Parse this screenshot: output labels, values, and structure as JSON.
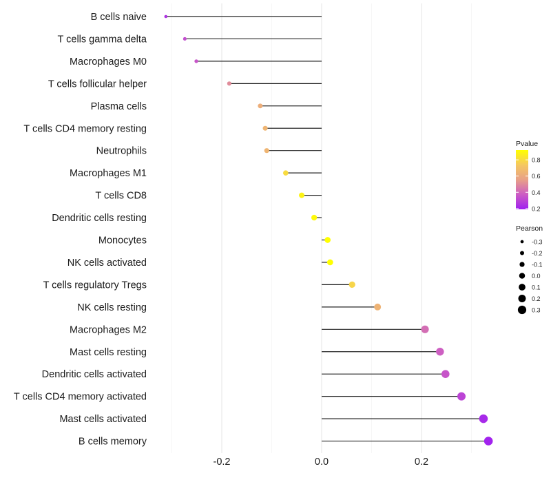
{
  "chart_data": {
    "type": "lollipop",
    "xlabel": "",
    "ylabel": "",
    "xlim": [
      -0.33,
      0.35
    ],
    "xticks": [
      -0.2,
      0.0,
      0.2
    ],
    "xtick_labels": [
      "-0.2",
      "0.0",
      "0.2"
    ],
    "grid": true,
    "categories": [
      "B cells naive",
      "T cells gamma delta",
      "Macrophages M0",
      "T cells follicular helper",
      "Plasma cells",
      "T cells CD4 memory resting",
      "Neutrophils",
      "Macrophages M1",
      "T cells CD8",
      "Dendritic cells resting",
      "Monocytes",
      "NK cells activated",
      "T cells regulatory  Tregs ",
      "NK cells resting",
      "Macrophages M2",
      "Mast cells resting",
      "Dendritic cells activated",
      "T cells CD4 memory activated",
      "Mast cells activated",
      "B cells memory"
    ],
    "pearson": [
      -0.312,
      -0.274,
      -0.251,
      -0.185,
      -0.123,
      -0.113,
      -0.11,
      -0.072,
      -0.04,
      -0.015,
      0.012,
      0.017,
      0.061,
      0.112,
      0.207,
      0.237,
      0.248,
      0.28,
      0.324,
      0.334
    ],
    "pvalue": [
      0.25,
      0.33,
      0.35,
      0.5,
      0.62,
      0.65,
      0.65,
      0.8,
      0.88,
      0.9,
      0.94,
      0.93,
      0.78,
      0.64,
      0.42,
      0.38,
      0.35,
      0.3,
      0.22,
      0.2
    ],
    "legend_color": {
      "title": "Pvalue",
      "ticks": [
        0.2,
        0.4,
        0.6,
        0.8
      ],
      "tick_labels": [
        "0.2",
        "0.4",
        "0.6",
        "0.8"
      ],
      "range": [
        0.19,
        0.92
      ],
      "placement": "right"
    },
    "legend_size": {
      "title": "Pearson",
      "values": [
        -0.3,
        -0.2,
        -0.1,
        0.0,
        0.1,
        0.2,
        0.3
      ],
      "labels": [
        "-0.3",
        "-0.2",
        "-0.1",
        "0.0",
        "0.1",
        "0.2",
        "0.3"
      ],
      "placement": "right"
    },
    "colors": {
      "low": "#a020f0",
      "mid1": "#cc5cc4",
      "mid2": "#e8a088",
      "mid3": "#f5c860",
      "high": "#ffff00"
    }
  }
}
